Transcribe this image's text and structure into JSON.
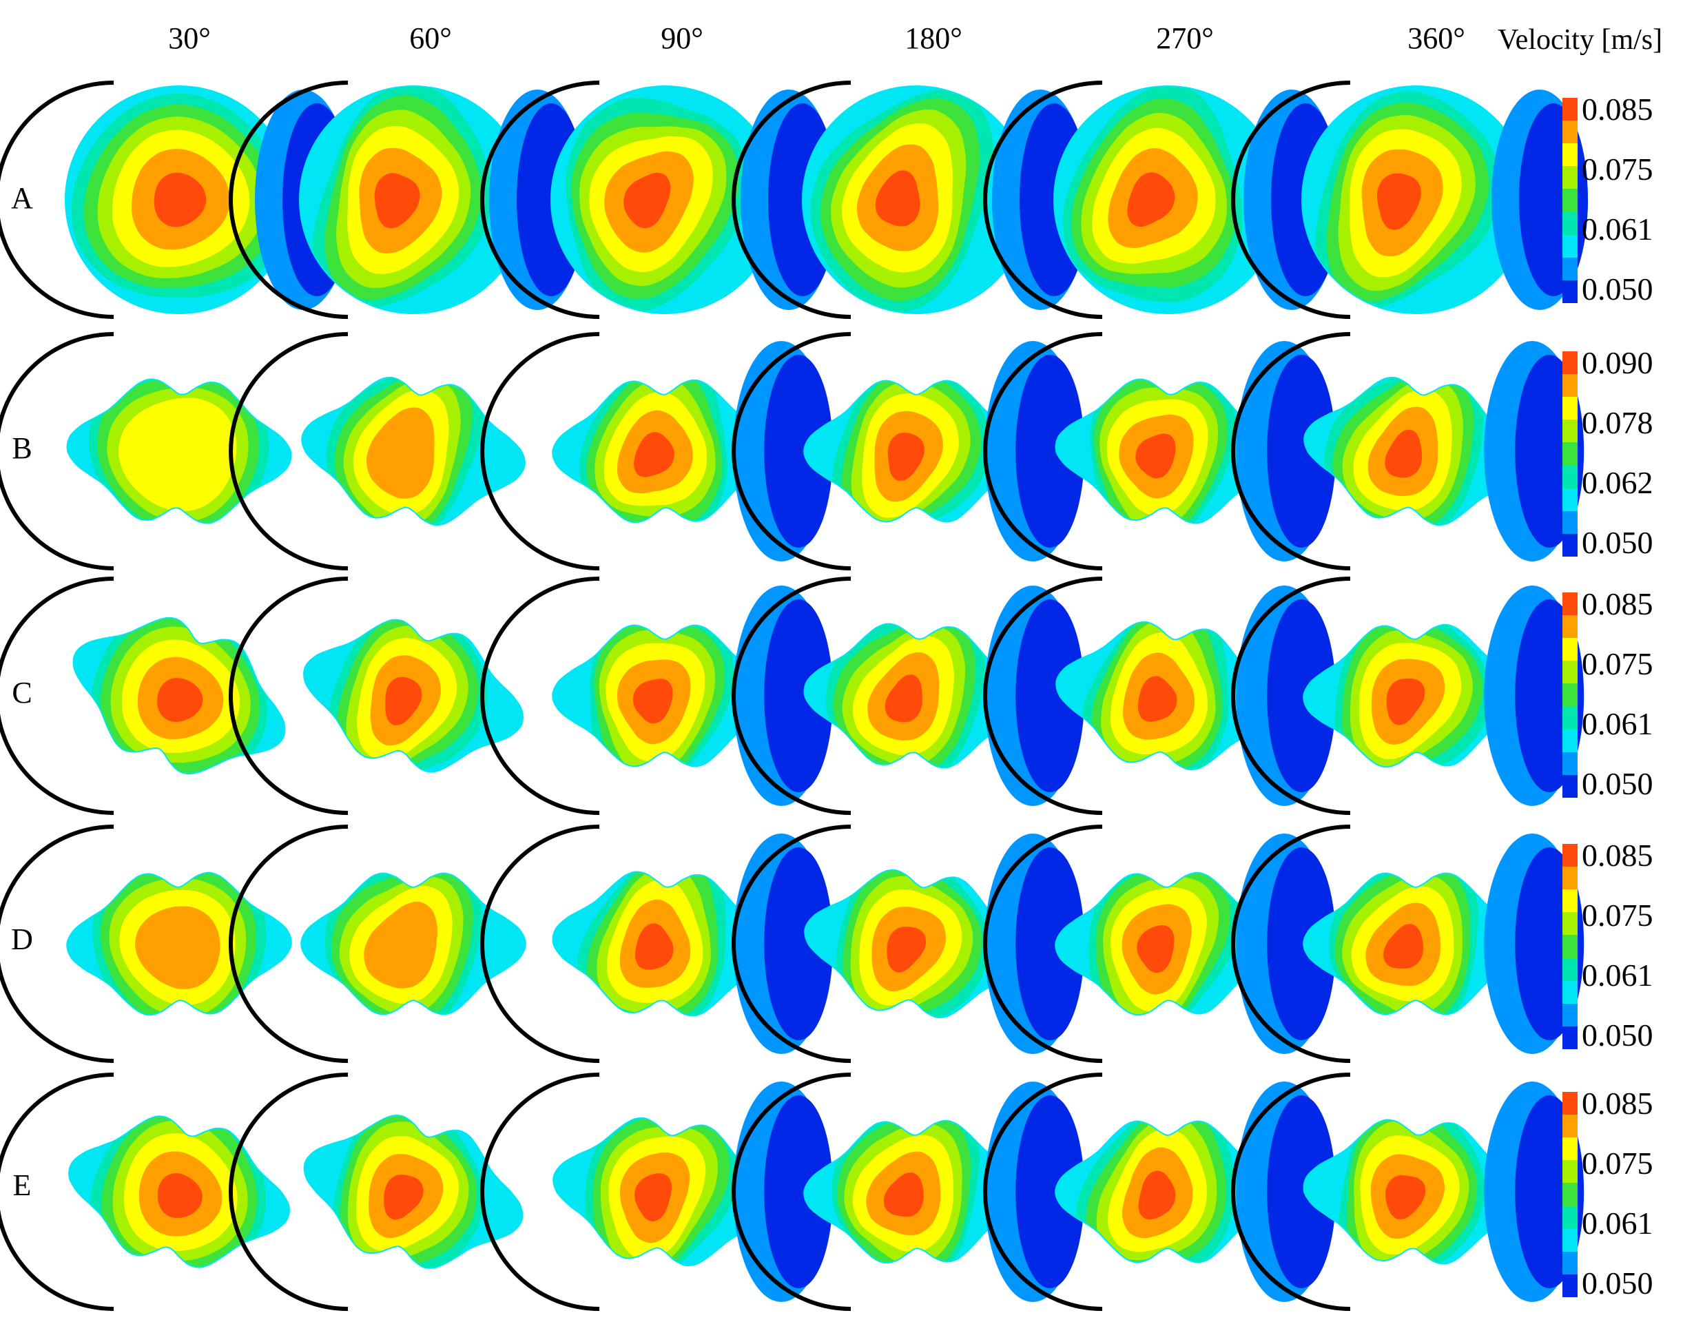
{
  "title": "Velocity [m/s]",
  "angles": [
    "30°",
    "60°",
    "90°",
    "180°",
    "270°",
    "360°"
  ],
  "rows": [
    {
      "label": "A",
      "shape": "circle",
      "ticks": [
        "0.085",
        "0.075",
        "0.061",
        "0.050"
      ]
    },
    {
      "label": "B",
      "shape": "diamond",
      "ticks": [
        "0.090",
        "0.078",
        "0.062",
        "0.050"
      ]
    },
    {
      "label": "C",
      "shape": "diamond",
      "ticks": [
        "0.085",
        "0.075",
        "0.061",
        "0.050"
      ]
    },
    {
      "label": "D",
      "shape": "diamond",
      "ticks": [
        "0.085",
        "0.075",
        "0.061",
        "0.050"
      ]
    },
    {
      "label": "E",
      "shape": "diamond",
      "ticks": [
        "0.085",
        "0.075",
        "0.061",
        "0.050"
      ]
    }
  ],
  "colors": {
    "scale": [
      "#ff4a0a",
      "#ffa000",
      "#ffff00",
      "#a6f000",
      "#3de23c",
      "#00e6b0",
      "#00e6f5",
      "#0096ff",
      "#0028e6"
    ],
    "wall": "#000000"
  }
}
